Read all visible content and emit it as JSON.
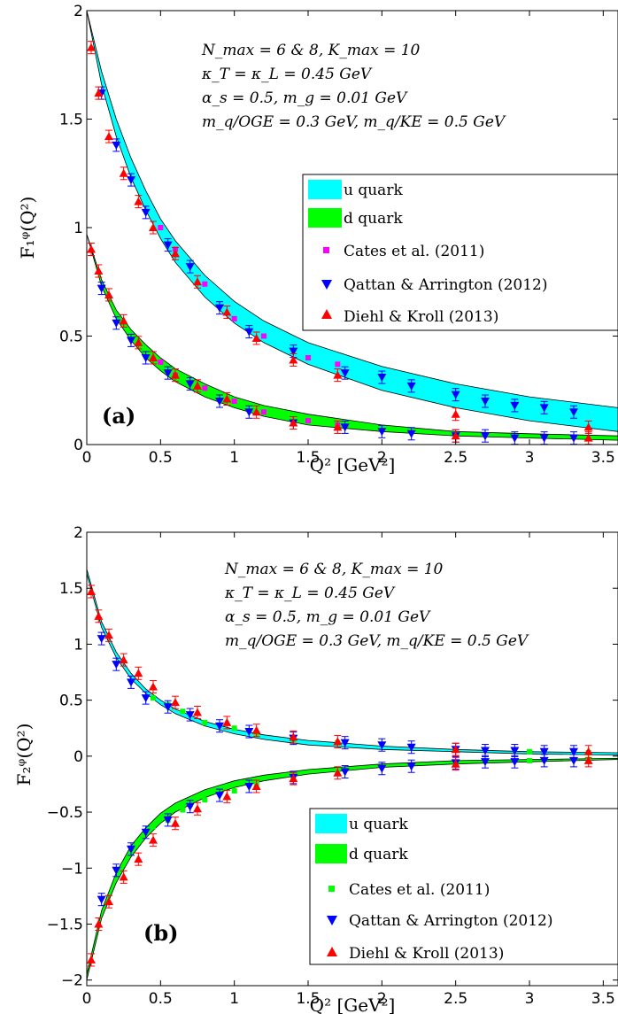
{
  "chart_data": [
    {
      "type": "scatter",
      "panel_label": "(a)",
      "ylabel": "F₁ᵠ(Q²)",
      "xlabel": "Q² [GeV²]",
      "xlim": [
        0,
        3.6
      ],
      "ylim": [
        0,
        2
      ],
      "xticks": [
        "0",
        "0.5",
        "1",
        "1.5",
        "2",
        "2.5",
        "3",
        "3.5"
      ],
      "xtick_values": [
        0,
        0.5,
        1,
        1.5,
        2,
        2.5,
        3,
        3.5
      ],
      "yticks": [
        "0",
        "0.5",
        "1",
        "1.5",
        "2"
      ],
      "ytick_values": [
        0,
        0.5,
        1,
        1.5,
        2
      ],
      "annotation": [
        "N_max = 6 & 8,  K_max = 10",
        "κ_T = κ_L = 0.45 GeV",
        "α_s = 0.5,  m_g = 0.01 GeV",
        "m_q/OGE = 0.3 GeV,  m_q/KE = 0.5 GeV"
      ],
      "legend_position": "center-right",
      "bands": [
        {
          "name": "u quark",
          "color": "#00ffff",
          "x": [
            0,
            0.1,
            0.2,
            0.3,
            0.4,
            0.5,
            0.6,
            0.8,
            1.0,
            1.2,
            1.5,
            2.0,
            2.5,
            3.0,
            3.6
          ],
          "upper": [
            2.0,
            1.72,
            1.5,
            1.32,
            1.17,
            1.04,
            0.94,
            0.78,
            0.66,
            0.57,
            0.47,
            0.36,
            0.28,
            0.22,
            0.17
          ],
          "lower": [
            2.0,
            1.66,
            1.42,
            1.23,
            1.08,
            0.95,
            0.84,
            0.68,
            0.56,
            0.47,
            0.37,
            0.25,
            0.17,
            0.11,
            0.06
          ]
        },
        {
          "name": "d quark",
          "color": "#00ff00",
          "x": [
            0,
            0.1,
            0.2,
            0.3,
            0.4,
            0.5,
            0.6,
            0.8,
            1.0,
            1.2,
            1.5,
            2.0,
            2.5,
            3.0,
            3.6
          ],
          "upper": [
            0.97,
            0.76,
            0.62,
            0.53,
            0.46,
            0.4,
            0.35,
            0.28,
            0.22,
            0.18,
            0.14,
            0.09,
            0.06,
            0.05,
            0.04
          ],
          "lower": [
            0.97,
            0.73,
            0.58,
            0.48,
            0.4,
            0.34,
            0.29,
            0.22,
            0.17,
            0.13,
            0.09,
            0.06,
            0.04,
            0.03,
            0.02
          ]
        }
      ],
      "series": [
        {
          "name": "Cates et  al. (2011)",
          "marker": "square",
          "color": "#ff00ff",
          "points": [
            [
              0.5,
              1.0
            ],
            [
              0.6,
              0.9
            ],
            [
              0.8,
              0.74
            ],
            [
              1.0,
              0.58
            ],
            [
              1.2,
              0.5
            ],
            [
              1.5,
              0.4
            ],
            [
              1.7,
              0.37
            ],
            [
              0.5,
              0.38
            ],
            [
              0.6,
              0.32
            ],
            [
              0.8,
              0.26
            ],
            [
              1.0,
              0.2
            ],
            [
              1.2,
              0.15
            ],
            [
              1.5,
              0.11
            ],
            [
              1.7,
              0.09
            ]
          ]
        },
        {
          "name": "Qattan & Arrington (2012)",
          "marker": "down-triangle",
          "color": "#0000ff",
          "points": [
            [
              0.1,
              1.62
            ],
            [
              0.2,
              1.38
            ],
            [
              0.3,
              1.22
            ],
            [
              0.4,
              1.07
            ],
            [
              0.55,
              0.92
            ],
            [
              0.7,
              0.82
            ],
            [
              0.9,
              0.63
            ],
            [
              1.1,
              0.52
            ],
            [
              1.4,
              0.43
            ],
            [
              1.75,
              0.33
            ],
            [
              2.0,
              0.31
            ],
            [
              2.2,
              0.27
            ],
            [
              2.5,
              0.23
            ],
            [
              2.7,
              0.2
            ],
            [
              2.9,
              0.18
            ],
            [
              3.1,
              0.17
            ],
            [
              3.3,
              0.15
            ],
            [
              0.1,
              0.72
            ],
            [
              0.2,
              0.56
            ],
            [
              0.3,
              0.48
            ],
            [
              0.4,
              0.4
            ],
            [
              0.55,
              0.33
            ],
            [
              0.7,
              0.28
            ],
            [
              0.9,
              0.2
            ],
            [
              1.1,
              0.15
            ],
            [
              1.4,
              0.1
            ],
            [
              1.75,
              0.08
            ],
            [
              2.0,
              0.06
            ],
            [
              2.2,
              0.05
            ],
            [
              2.5,
              0.04
            ],
            [
              2.7,
              0.04
            ],
            [
              2.9,
              0.03
            ],
            [
              3.1,
              0.03
            ],
            [
              3.3,
              0.03
            ]
          ]
        },
        {
          "name": "Diehl & Kroll (2013)",
          "marker": "up-triangle",
          "color": "#ff0000",
          "points": [
            [
              0.03,
              1.83
            ],
            [
              0.08,
              1.62
            ],
            [
              0.15,
              1.42
            ],
            [
              0.25,
              1.25
            ],
            [
              0.35,
              1.12
            ],
            [
              0.45,
              1.0
            ],
            [
              0.6,
              0.88
            ],
            [
              0.75,
              0.75
            ],
            [
              0.95,
              0.61
            ],
            [
              1.15,
              0.49
            ],
            [
              1.4,
              0.39
            ],
            [
              1.7,
              0.32
            ],
            [
              2.5,
              0.14
            ],
            [
              3.4,
              0.08
            ],
            [
              0.03,
              0.9
            ],
            [
              0.08,
              0.8
            ],
            [
              0.15,
              0.69
            ],
            [
              0.25,
              0.57
            ],
            [
              0.35,
              0.47
            ],
            [
              0.45,
              0.4
            ],
            [
              0.6,
              0.32
            ],
            [
              0.75,
              0.27
            ],
            [
              0.95,
              0.21
            ],
            [
              1.15,
              0.15
            ],
            [
              1.4,
              0.1
            ],
            [
              1.7,
              0.08
            ],
            [
              2.5,
              0.04
            ],
            [
              3.4,
              0.03
            ]
          ]
        }
      ]
    },
    {
      "type": "scatter",
      "panel_label": "(b)",
      "ylabel": "F₂ᵠ(Q²)",
      "xlabel": "Q² [GeV²]",
      "xlim": [
        0,
        3.6
      ],
      "ylim": [
        -2.05,
        2
      ],
      "xticks": [
        "0",
        "0.5",
        "1",
        "1.5",
        "2",
        "2.5",
        "3",
        "3.5"
      ],
      "xtick_values": [
        0,
        0.5,
        1,
        1.5,
        2,
        2.5,
        3,
        3.5
      ],
      "yticks": [
        "−2",
        "−1.5",
        "−1",
        "−0.5",
        "0",
        "0.5",
        "1",
        "1.5",
        "2"
      ],
      "ytick_values": [
        -2,
        -1.5,
        -1,
        -0.5,
        0,
        0.5,
        1,
        1.5,
        2
      ],
      "annotation": [
        "N_max = 6 & 8,  K_max = 10",
        "κ_T = κ_L = 0.45 GeV",
        "α_s = 0.5,  m_g = 0.01 GeV",
        "m_q/OGE = 0.3 GeV,  m_q/KE = 0.5 GeV"
      ],
      "legend_position": "bottom-right",
      "bands": [
        {
          "name": "u quark",
          "color": "#00ffff",
          "x": [
            0,
            0.1,
            0.2,
            0.3,
            0.4,
            0.5,
            0.6,
            0.8,
            1.0,
            1.2,
            1.5,
            2.0,
            2.5,
            3.0,
            3.6
          ],
          "upper": [
            1.67,
            1.2,
            0.93,
            0.74,
            0.6,
            0.5,
            0.42,
            0.31,
            0.24,
            0.19,
            0.14,
            0.09,
            0.06,
            0.04,
            0.03
          ],
          "lower": [
            1.63,
            1.15,
            0.88,
            0.69,
            0.56,
            0.46,
            0.38,
            0.27,
            0.2,
            0.15,
            0.1,
            0.06,
            0.04,
            0.02,
            0.01
          ]
        },
        {
          "name": "d quark",
          "color": "#00ff00",
          "x": [
            0,
            0.1,
            0.2,
            0.3,
            0.4,
            0.5,
            0.6,
            0.8,
            1.0,
            1.2,
            1.5,
            2.0,
            2.5,
            3.0,
            3.6
          ],
          "upper": [
            -1.95,
            -1.38,
            -1.04,
            -0.8,
            -0.64,
            -0.51,
            -0.42,
            -0.3,
            -0.22,
            -0.17,
            -0.12,
            -0.07,
            -0.04,
            -0.03,
            -0.02
          ],
          "lower": [
            -2.0,
            -1.45,
            -1.13,
            -0.9,
            -0.73,
            -0.6,
            -0.5,
            -0.37,
            -0.28,
            -0.22,
            -0.16,
            -0.1,
            -0.07,
            -0.05,
            -0.03
          ]
        }
      ],
      "series": [
        {
          "name": "Cates et  al. (2011)",
          "marker": "square",
          "color": "#00ff00",
          "points": [
            [
              0.45,
              0.52
            ],
            [
              0.55,
              0.46
            ],
            [
              0.65,
              0.4
            ],
            [
              0.8,
              0.3
            ],
            [
              1.0,
              0.25
            ],
            [
              1.15,
              0.2
            ],
            [
              1.4,
              0.15
            ],
            [
              1.7,
              0.12
            ],
            [
              2.5,
              0.06
            ],
            [
              3.0,
              0.04
            ],
            [
              3.4,
              0.03
            ],
            [
              0.45,
              -0.63
            ],
            [
              0.55,
              -0.57
            ],
            [
              0.65,
              -0.48
            ],
            [
              0.8,
              -0.39
            ],
            [
              1.0,
              -0.31
            ],
            [
              1.15,
              -0.25
            ],
            [
              1.4,
              -0.18
            ],
            [
              1.7,
              -0.13
            ],
            [
              2.5,
              -0.06
            ],
            [
              3.0,
              -0.04
            ],
            [
              3.4,
              -0.03
            ]
          ]
        },
        {
          "name": "Qattan & Arrington (2012)",
          "marker": "down-triangle",
          "color": "#0000ff",
          "points": [
            [
              0.1,
              1.05
            ],
            [
              0.2,
              0.82
            ],
            [
              0.3,
              0.66
            ],
            [
              0.4,
              0.52
            ],
            [
              0.55,
              0.44
            ],
            [
              0.7,
              0.37
            ],
            [
              0.9,
              0.27
            ],
            [
              1.1,
              0.22
            ],
            [
              1.4,
              0.16
            ],
            [
              1.75,
              0.12
            ],
            [
              2.0,
              0.1
            ],
            [
              2.2,
              0.08
            ],
            [
              2.5,
              0.06
            ],
            [
              2.7,
              0.05
            ],
            [
              2.9,
              0.05
            ],
            [
              3.1,
              0.04
            ],
            [
              3.3,
              0.04
            ],
            [
              0.1,
              -1.28
            ],
            [
              0.2,
              -1.02
            ],
            [
              0.3,
              -0.83
            ],
            [
              0.4,
              -0.68
            ],
            [
              0.55,
              -0.57
            ],
            [
              0.7,
              -0.45
            ],
            [
              0.9,
              -0.35
            ],
            [
              1.1,
              -0.27
            ],
            [
              1.4,
              -0.19
            ],
            [
              1.75,
              -0.14
            ],
            [
              2.0,
              -0.11
            ],
            [
              2.2,
              -0.09
            ],
            [
              2.5,
              -0.06
            ],
            [
              2.7,
              -0.05
            ],
            [
              2.9,
              -0.05
            ],
            [
              3.1,
              -0.04
            ],
            [
              3.3,
              -0.04
            ]
          ]
        },
        {
          "name": "Diehl & Kroll (2013)",
          "marker": "up-triangle",
          "color": "#ff0000",
          "points": [
            [
              0.03,
              1.47
            ],
            [
              0.08,
              1.25
            ],
            [
              0.15,
              1.08
            ],
            [
              0.25,
              0.86
            ],
            [
              0.35,
              0.74
            ],
            [
              0.45,
              0.62
            ],
            [
              0.6,
              0.48
            ],
            [
              0.75,
              0.39
            ],
            [
              0.95,
              0.3
            ],
            [
              1.15,
              0.23
            ],
            [
              1.4,
              0.17
            ],
            [
              1.7,
              0.13
            ],
            [
              2.5,
              0.06
            ],
            [
              3.4,
              0.04
            ],
            [
              0.03,
              -1.82
            ],
            [
              0.08,
              -1.5
            ],
            [
              0.15,
              -1.3
            ],
            [
              0.25,
              -1.08
            ],
            [
              0.35,
              -0.92
            ],
            [
              0.45,
              -0.75
            ],
            [
              0.6,
              -0.6
            ],
            [
              0.75,
              -0.47
            ],
            [
              0.95,
              -0.36
            ],
            [
              1.15,
              -0.27
            ],
            [
              1.4,
              -0.2
            ],
            [
              1.7,
              -0.15
            ],
            [
              2.5,
              -0.07
            ],
            [
              3.4,
              -0.04
            ]
          ]
        }
      ]
    }
  ]
}
